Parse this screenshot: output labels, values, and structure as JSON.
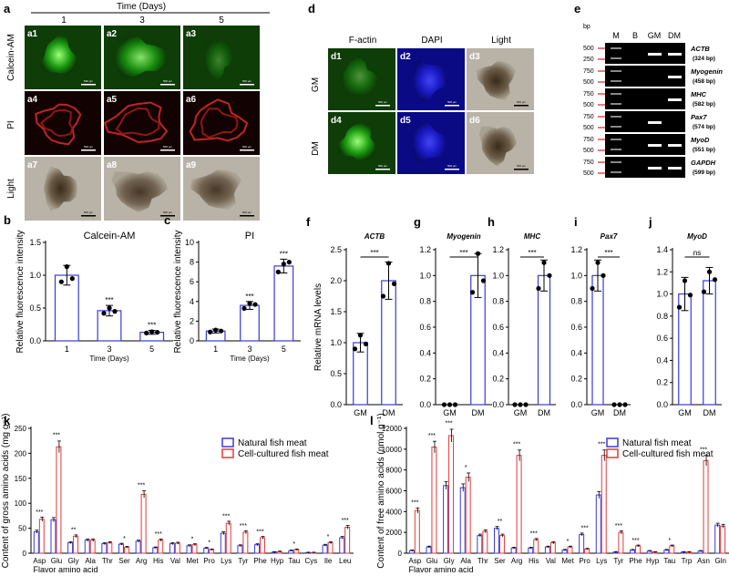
{
  "panel_a": {
    "letter": "a",
    "time_header": "Time (Days)",
    "days": [
      "1",
      "3",
      "5"
    ],
    "row_labels": [
      "Calcein-AM",
      "PI",
      "Light"
    ],
    "cells": [
      "a1",
      "a2",
      "a3",
      "a4",
      "a5",
      "a6",
      "a7",
      "a8",
      "a9"
    ],
    "scale_text": "500 μm"
  },
  "panel_d": {
    "letter": "d",
    "col_labels": [
      "F-actin",
      "DAPI",
      "Light"
    ],
    "row_labels": [
      "GM",
      "DM"
    ],
    "cells": [
      "d1",
      "d2",
      "d3",
      "d4",
      "d5",
      "d6"
    ],
    "scale_text": "500 μm"
  },
  "panel_e": {
    "letter": "e",
    "bp_label": "bp",
    "lane_labels": [
      "M",
      "B",
      "GM",
      "DM"
    ],
    "genes": [
      {
        "name": "ACTB",
        "size": "(324 bp)",
        "markers": [
          "500",
          "250"
        ]
      },
      {
        "name": "Myogenin",
        "size": "(458 bp)",
        "markers": [
          "750",
          "500"
        ]
      },
      {
        "name": "MHC",
        "size": "(582 bp)",
        "markers": [
          "750",
          "500"
        ]
      },
      {
        "name": "Pax7",
        "size": "(574 bp)",
        "markers": [
          "750",
          "500"
        ]
      },
      {
        "name": "MyoD",
        "size": "(551 bp)",
        "markers": [
          "750",
          "500"
        ]
      },
      {
        "name": "GAPDH",
        "size": "(599 bp)",
        "markers": [
          "750",
          "500"
        ]
      }
    ]
  },
  "chart_data": [
    {
      "id": "b",
      "type": "bar",
      "title": "Calcein-AM",
      "ylabel": "Relative fluorescence intensity",
      "xlabel": "Time (Days)",
      "categories": [
        "1",
        "3",
        "5"
      ],
      "values": [
        1.0,
        0.46,
        0.13
      ],
      "errors": [
        0.15,
        0.08,
        0.03
      ],
      "points": [
        [
          0.9,
          1.13,
          0.95
        ],
        [
          0.42,
          0.5,
          0.45
        ],
        [
          0.12,
          0.14,
          0.13
        ]
      ],
      "ylim": [
        0,
        1.5
      ],
      "yticks": [
        "0.0",
        "0.5",
        "1.0",
        "1.5"
      ],
      "sig": [
        "",
        "***",
        "***"
      ]
    },
    {
      "id": "c",
      "type": "bar",
      "title": "PI",
      "ylabel": "Relative fluorescence intensity",
      "xlabel": "Time (Days)",
      "categories": [
        "1",
        "3",
        "5"
      ],
      "values": [
        1.0,
        3.6,
        7.6
      ],
      "errors": [
        0.2,
        0.4,
        0.7
      ],
      "points": [
        [
          0.9,
          1.1,
          1.0
        ],
        [
          3.3,
          3.8,
          3.7
        ],
        [
          7.0,
          7.8,
          8.0
        ]
      ],
      "ylim": [
        0,
        10
      ],
      "yticks": [
        "0",
        "2",
        "4",
        "6",
        "8",
        "10"
      ],
      "sig": [
        "",
        "***",
        "***"
      ]
    },
    {
      "id": "f",
      "type": "bar",
      "title": "ACTB",
      "ylabel": "Relative mRNA levels",
      "categories": [
        "GM",
        "DM"
      ],
      "values": [
        1.0,
        2.0
      ],
      "errors": [
        0.15,
        0.3
      ],
      "points": [
        [
          0.9,
          1.12,
          0.98
        ],
        [
          1.75,
          2.28,
          1.95
        ]
      ],
      "ylim": [
        0,
        2.5
      ],
      "yticks": [
        "0.0",
        "0.5",
        "1.0",
        "1.5",
        "2.0",
        "2.5"
      ],
      "bracket": "***"
    },
    {
      "id": "g",
      "type": "bar",
      "title": "Myogenin",
      "categories": [
        "GM",
        "DM"
      ],
      "values": [
        0.0,
        1.0
      ],
      "errors": [
        0,
        0.17
      ],
      "points": [
        [
          0,
          0,
          0
        ],
        [
          0.87,
          1.17,
          0.96
        ]
      ],
      "ylim": [
        0,
        1.2
      ],
      "yticks": [
        "0.0",
        "0.2",
        "0.4",
        "0.6",
        "0.8",
        "1.0",
        "1.2"
      ],
      "bracket": "***"
    },
    {
      "id": "h",
      "type": "bar",
      "title": "MHC",
      "categories": [
        "GM",
        "DM"
      ],
      "values": [
        0.0,
        1.0
      ],
      "errors": [
        0,
        0.12
      ],
      "points": [
        [
          0,
          0,
          0
        ],
        [
          0.9,
          1.1,
          1.0
        ]
      ],
      "ylim": [
        0,
        1.2
      ],
      "yticks": [
        "0.0",
        "0.2",
        "0.4",
        "0.6",
        "0.8",
        "1.0",
        "1.2"
      ],
      "bracket": "***"
    },
    {
      "id": "i",
      "type": "bar",
      "title": "Pax7",
      "categories": [
        "GM",
        "DM"
      ],
      "values": [
        1.0,
        0.0
      ],
      "errors": [
        0.12,
        0
      ],
      "points": [
        [
          0.9,
          1.1,
          1.0
        ],
        [
          0,
          0,
          0
        ]
      ],
      "ylim": [
        0,
        1.2
      ],
      "yticks": [
        "0.0",
        "0.2",
        "0.4",
        "0.6",
        "0.8",
        "1.0",
        "1.2"
      ],
      "bracket": "***"
    },
    {
      "id": "j",
      "type": "bar",
      "title": "MyoD",
      "categories": [
        "GM",
        "DM"
      ],
      "values": [
        1.0,
        1.12
      ],
      "errors": [
        0.15,
        0.12
      ],
      "points": [
        [
          0.88,
          1.12,
          0.99
        ],
        [
          1.02,
          1.2,
          1.13
        ]
      ],
      "ylim": [
        0,
        1.4
      ],
      "yticks": [
        "0.0",
        "0.2",
        "0.4",
        "0.6",
        "0.8",
        "1.0",
        "1.2",
        "1.4"
      ],
      "bracket": "ns"
    },
    {
      "id": "k",
      "type": "bar",
      "ylabel": "Content of gross amino acids (mg g⁻¹)",
      "xnote": "Flavor amino acid",
      "categories": [
        "Asp",
        "Glu",
        "Gly",
        "Ala",
        "Thr",
        "Ser",
        "Arg",
        "His",
        "Val",
        "Met",
        "Pro",
        "Lys",
        "Tyr",
        "Phe",
        "Hyp",
        "Tau",
        "Cys",
        "Ile",
        "Leu"
      ],
      "series": [
        {
          "name": "Natural fish meat",
          "values": [
            43,
            67,
            21,
            26,
            19,
            18,
            24,
            11,
            19,
            15,
            10,
            40,
            15,
            17,
            2,
            5,
            1,
            16,
            31
          ]
        },
        {
          "name": "Cell-cultured fish meat",
          "values": [
            68,
            213,
            34,
            26,
            21,
            12,
            118,
            26,
            20,
            17,
            7,
            60,
            42,
            31,
            3,
            7,
            1,
            21,
            52
          ]
        }
      ],
      "sig": [
        "***",
        "***",
        "**",
        "",
        "",
        "*",
        "***",
        "***",
        "",
        "*",
        "*",
        "***",
        "***",
        "***",
        "",
        "*",
        "",
        "*",
        "***"
      ],
      "ylim": [
        0,
        250
      ],
      "yticks": [
        "0",
        "50",
        "100",
        "150",
        "200",
        "250"
      ]
    },
    {
      "id": "l",
      "type": "bar",
      "ylabel": "Content of free amino acids (nmol g⁻¹)",
      "xnote": "Flavor amino acid",
      "categories": [
        "Asp",
        "Glu",
        "Gly",
        "Ala",
        "Thr",
        "Ser",
        "Arg",
        "His",
        "Val",
        "Met",
        "Pro",
        "Lys",
        "Tyr",
        "Phe",
        "Hyp",
        "Tau",
        "Trp",
        "Asn",
        "Gln"
      ],
      "series": [
        {
          "name": "Natural fish meat",
          "values": [
            250,
            600,
            6500,
            6300,
            1700,
            2400,
            500,
            500,
            600,
            300,
            1800,
            5600,
            100,
            300,
            200,
            300,
            100,
            200,
            2700
          ]
        },
        {
          "name": "Cell-cultured fish meat",
          "values": [
            4100,
            10200,
            11300,
            7300,
            2100,
            1700,
            9400,
            1300,
            1000,
            600,
            400,
            9400,
            2000,
            700,
            100,
            700,
            100,
            8900,
            2600
          ]
        }
      ],
      "sig": [
        "***",
        "***",
        "***",
        "*",
        "",
        "**",
        "***",
        "***",
        "",
        "*",
        "***",
        "***",
        "***",
        "***",
        "",
        "*",
        "",
        "***",
        ""
      ],
      "ylim": [
        0,
        12000
      ],
      "yticks": [
        "0",
        "2000",
        "4000",
        "6000",
        "8000",
        "10000",
        "12000"
      ]
    }
  ],
  "colors": {
    "natural": "#3a3ad6",
    "cultured": "#e03a3a",
    "bar_outline": "#3a3ad6",
    "sig_red": "#d02020"
  }
}
